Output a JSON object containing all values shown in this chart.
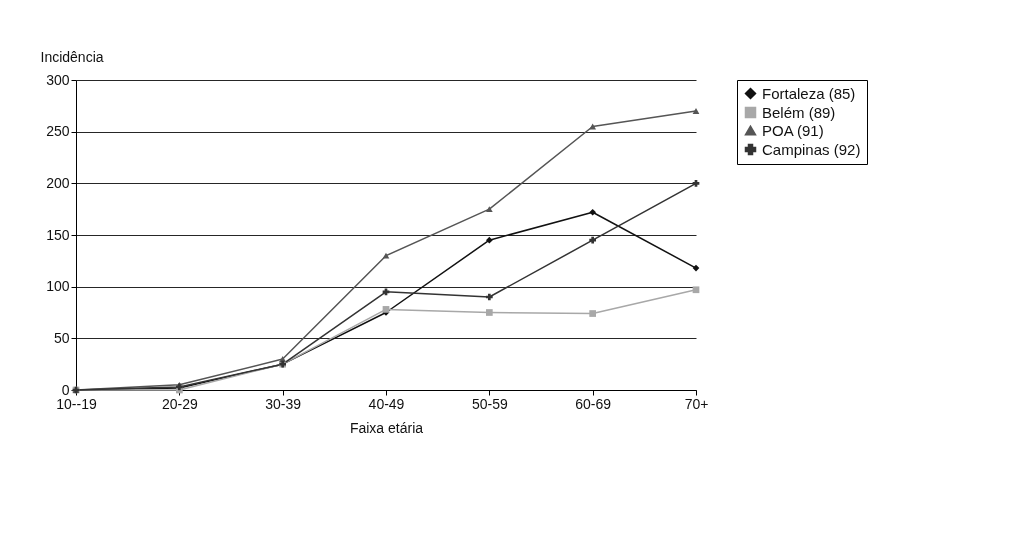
{
  "chart_data": {
    "type": "line",
    "xlabel": "Faixa etária",
    "ylabel": "Incidência",
    "categories": [
      "10--19",
      "20-29",
      "30-39",
      "40-49",
      "50-59",
      "60-69",
      "70+"
    ],
    "series": [
      {
        "name": "Fortaleza (85)",
        "color": "#111111",
        "marker": "diamond",
        "values": [
          0,
          2,
          25,
          75,
          145,
          172,
          118
        ]
      },
      {
        "name": "Belém (89)",
        "color": "#a8a8a8",
        "marker": "square",
        "values": [
          0,
          0,
          25,
          78,
          75,
          74,
          97
        ]
      },
      {
        "name": "POA (91)",
        "color": "#555555",
        "marker": "triangle",
        "values": [
          0,
          5,
          30,
          130,
          175,
          255,
          270
        ]
      },
      {
        "name": "Campinas (92)",
        "color": "#333333",
        "marker": "cross",
        "values": [
          0,
          3,
          25,
          95,
          90,
          145,
          200
        ]
      }
    ],
    "ylim": [
      0,
      300
    ],
    "yticks": [
      0,
      50,
      100,
      150,
      200,
      250,
      300
    ],
    "grid": "y",
    "legend": "right"
  }
}
